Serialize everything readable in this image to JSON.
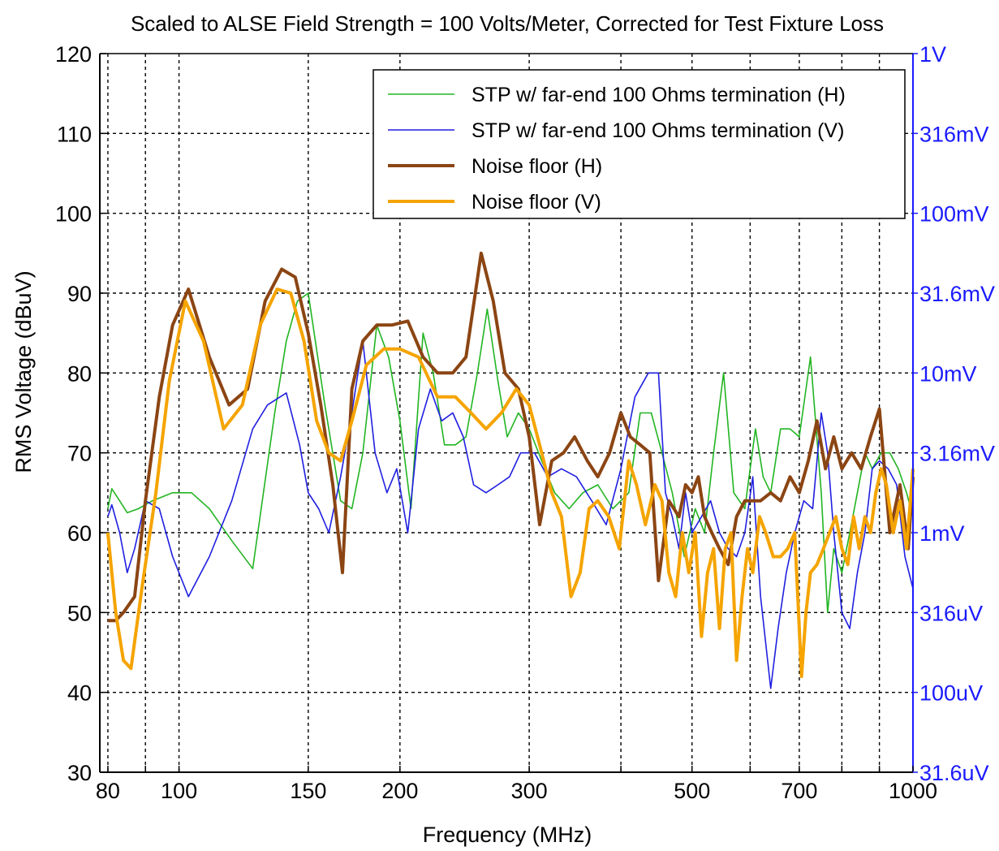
{
  "chart_data": {
    "type": "line",
    "title": "Scaled to ALSE Field Strength = 100 Volts/Meter, Corrected for Test Fixture Loss",
    "xlabel": "Frequency (MHz)",
    "ylabel": "RMS Voltage (dBuV)",
    "x_scale": "log",
    "xlim": [
      78,
      1000
    ],
    "ylim": [
      30,
      120
    ],
    "x_ticks": [
      80,
      100,
      150,
      200,
      300,
      500,
      700,
      1000
    ],
    "x_gridlines": [
      80,
      90,
      100,
      150,
      200,
      300,
      400,
      500,
      600,
      700,
      800,
      900,
      1000
    ],
    "y_ticks": [
      30,
      40,
      50,
      60,
      70,
      80,
      90,
      100,
      110,
      120
    ],
    "right_axis_labels": [
      {
        "y": 30,
        "label": "31.6uV"
      },
      {
        "y": 40,
        "label": "100uV"
      },
      {
        "y": 50,
        "label": "316uV"
      },
      {
        "y": 60,
        "label": "1mV"
      },
      {
        "y": 70,
        "label": "3.16mV"
      },
      {
        "y": 80,
        "label": "10mV"
      },
      {
        "y": 90,
        "label": "31.6mV"
      },
      {
        "y": 100,
        "label": "100mV"
      },
      {
        "y": 110,
        "label": "316mV"
      },
      {
        "y": 120,
        "label": "1V"
      }
    ],
    "grid": true,
    "legend_position": "top-right",
    "series": [
      {
        "name": "STP w/ far-end 100 Ohms termination (H)",
        "color": "#22b522",
        "width": 1.6,
        "x": [
          80,
          81,
          83,
          85,
          88,
          92,
          98,
          104,
          110,
          118,
          126,
          135,
          140,
          145,
          150,
          158,
          166,
          172,
          178,
          186,
          193,
          200,
          207,
          215,
          222,
          230,
          238,
          246,
          255,
          263,
          272,
          280,
          290,
          300,
          312,
          325,
          340,
          355,
          372,
          390,
          410,
          425,
          440,
          455,
          470,
          488,
          505,
          520,
          535,
          552,
          570,
          590,
          610,
          625,
          640,
          660,
          680,
          700,
          725,
          750,
          765,
          780,
          800,
          820,
          840,
          860,
          880,
          905,
          930,
          955,
          980,
          1000
        ],
        "y": [
          63,
          65.5,
          64,
          62.5,
          63,
          64,
          65,
          65,
          63,
          59,
          55.5,
          75,
          84,
          89,
          90,
          76,
          64,
          63,
          70,
          86,
          82,
          74,
          63,
          85,
          80,
          71,
          71,
          72,
          80,
          88,
          79,
          72,
          75,
          73,
          69,
          65,
          63,
          65,
          66,
          63,
          65,
          75,
          75,
          70,
          65,
          57,
          63,
          60,
          70,
          80,
          65,
          63,
          73,
          67,
          65,
          73,
          73,
          72,
          82,
          65,
          50,
          58,
          55,
          60,
          65,
          70,
          68,
          70,
          70,
          68,
          65,
          62
        ]
      },
      {
        "name": "STP w/ far-end 100 Ohms termination (V)",
        "color": "#1f1fe0",
        "width": 1.6,
        "x": [
          80,
          81,
          83,
          85,
          87,
          90,
          94,
          98,
          103,
          110,
          118,
          126,
          132,
          140,
          146,
          150,
          155,
          160,
          166,
          172,
          178,
          185,
          192,
          198,
          205,
          212,
          220,
          228,
          236,
          244,
          252,
          262,
          272,
          282,
          292,
          305,
          318,
          332,
          348,
          365,
          382,
          400,
          418,
          436,
          450,
          460,
          470,
          480,
          490,
          500,
          515,
          530,
          545,
          560,
          575,
          590,
          605,
          620,
          640,
          655,
          672,
          690,
          710,
          730,
          750,
          765,
          780,
          800,
          820,
          840,
          860,
          880,
          900,
          925,
          950,
          975,
          1000
        ],
        "y": [
          62,
          63.5,
          60,
          55,
          58,
          64,
          63,
          57,
          52,
          57,
          64,
          73,
          76,
          77.5,
          71,
          65,
          63,
          60,
          67,
          75,
          84,
          70,
          65,
          68,
          60,
          73,
          78,
          74,
          75,
          72,
          66,
          65,
          66,
          67,
          70,
          70,
          67,
          68,
          67,
          64,
          61,
          68,
          77,
          80,
          80,
          65,
          62,
          58,
          65,
          60,
          62,
          64,
          60,
          58,
          57,
          60,
          67,
          52,
          40.5,
          48,
          55,
          60,
          64,
          63,
          75,
          70,
          60,
          50,
          48,
          55,
          60,
          68,
          69,
          68,
          66,
          57,
          53
        ]
      },
      {
        "name": "Noise floor (H)",
        "color": "#8b4513",
        "width": 4,
        "x": [
          80,
          82,
          84,
          87,
          90,
          94,
          98,
          103,
          110,
          117,
          124,
          131,
          138,
          144,
          150,
          156,
          162,
          167,
          172,
          178,
          186,
          195,
          205,
          215,
          225,
          236,
          246,
          258,
          268,
          278,
          290,
          300,
          310,
          322,
          334,
          346,
          360,
          372,
          386,
          400,
          412,
          425,
          438,
          450,
          465,
          480,
          490,
          500,
          510,
          520,
          532,
          545,
          560,
          575,
          590,
          605,
          620,
          640,
          660,
          680,
          700,
          720,
          740,
          760,
          780,
          800,
          825,
          850,
          875,
          900,
          930,
          960,
          985,
          1000
        ],
        "y": [
          49,
          49,
          50,
          52,
          64,
          77,
          86,
          90.5,
          82,
          76,
          78,
          89,
          93,
          92,
          85,
          76,
          66,
          55,
          78,
          84,
          86,
          86,
          86.5,
          82,
          80,
          80,
          82,
          95,
          89,
          80,
          78,
          72,
          61,
          69,
          70,
          72,
          69,
          67,
          70,
          75,
          72,
          71,
          70,
          54,
          64,
          62,
          66,
          65,
          67,
          62,
          60,
          58,
          56,
          62,
          64,
          64,
          64,
          65,
          64,
          67,
          65,
          69,
          74,
          68,
          72,
          68,
          70,
          68,
          72,
          75.5,
          60,
          66,
          58,
          67
        ]
      },
      {
        "name": "Noise floor (V)",
        "color": "#f5a400",
        "width": 4,
        "x": [
          80,
          82,
          84,
          86,
          89,
          93,
          97,
          102,
          108,
          115,
          122,
          129,
          136,
          142,
          148,
          154,
          160,
          166,
          172,
          180,
          190,
          200,
          212,
          225,
          238,
          250,
          262,
          275,
          288,
          300,
          312,
          322,
          332,
          342,
          352,
          362,
          372,
          385,
          398,
          410,
          420,
          432,
          445,
          455,
          465,
          475,
          485,
          495,
          505,
          515,
          525,
          535,
          545,
          555,
          565,
          575,
          585,
          595,
          605,
          618,
          630,
          645,
          660,
          675,
          690,
          705,
          715,
          725,
          740,
          755,
          770,
          785,
          800,
          815,
          830,
          845,
          860,
          875,
          890,
          905,
          920,
          940,
          960,
          980,
          1000
        ],
        "y": [
          60,
          50,
          44,
          43,
          53,
          65,
          79,
          89,
          84,
          73,
          76,
          86,
          90.5,
          90,
          84,
          74,
          70,
          69,
          74,
          81,
          83,
          83,
          82,
          77,
          77,
          75,
          73,
          75,
          78,
          76,
          70,
          65,
          62,
          52,
          55,
          63,
          64,
          62,
          58,
          69,
          66,
          61,
          66,
          64,
          55,
          52,
          60,
          55,
          60,
          47,
          55,
          58,
          48,
          58,
          60,
          44,
          52,
          58,
          55,
          62,
          60,
          57,
          57,
          58,
          60,
          42,
          50,
          55,
          56,
          58,
          60,
          62,
          58,
          56,
          62,
          58,
          62,
          60,
          65,
          68,
          66,
          60,
          64,
          58,
          68
        ]
      }
    ]
  }
}
